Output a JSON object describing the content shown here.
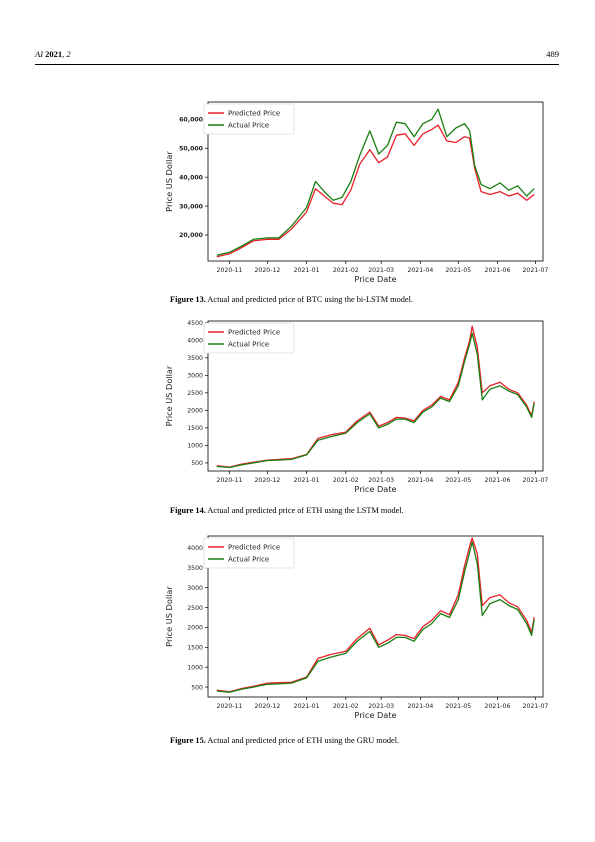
{
  "header": {
    "journal": "AI",
    "year": "2021",
    "volume": "2",
    "page": "489"
  },
  "figures": [
    {
      "caption_label": "Figure 13.",
      "caption_text": "Actual and predicted price of BTC using the bi-LSTM model."
    },
    {
      "caption_label": "Figure 14.",
      "caption_text": "Actual and predicted price of ETH using the LSTM model."
    },
    {
      "caption_label": "Figure 15.",
      "caption_text": "Actual and predicted price of ETH using the GRU model."
    }
  ],
  "chart_data": [
    {
      "type": "line",
      "xlabel": "Price Date",
      "ylabel": "Price US Dollar",
      "x_ticks": [
        "2020-11",
        "2020-12",
        "2021-01",
        "2021-02",
        "2021-03",
        "2021-04",
        "2021-05",
        "2021-06",
        "2021-07"
      ],
      "y_ticks": [
        "20,000",
        "30,000",
        "40,000",
        "50,000",
        "60,000"
      ],
      "ylim": [
        11000,
        66000
      ],
      "legend_position": "top-left",
      "grid": false,
      "series": [
        {
          "name": "Predicted Price",
          "color": "#e8202a",
          "x": [
            "2020-10-22",
            "2020-11-01",
            "2020-11-10",
            "2020-11-20",
            "2020-12-01",
            "2020-12-10",
            "2020-12-20",
            "2021-01-01",
            "2021-01-08",
            "2021-01-15",
            "2021-01-22",
            "2021-01-29",
            "2021-02-05",
            "2021-02-12",
            "2021-02-20",
            "2021-02-27",
            "2021-03-06",
            "2021-03-13",
            "2021-03-20",
            "2021-03-27",
            "2021-04-03",
            "2021-04-10",
            "2021-04-15",
            "2021-04-22",
            "2021-04-29",
            "2021-05-06",
            "2021-05-10",
            "2021-05-14",
            "2021-05-19",
            "2021-05-26",
            "2021-06-03",
            "2021-06-10",
            "2021-06-17",
            "2021-06-24",
            "2021-06-30"
          ],
          "y": [
            12500,
            13500,
            15500,
            18000,
            18500,
            18500,
            22000,
            28000,
            36000,
            33500,
            31000,
            30500,
            35500,
            44500,
            49500,
            45000,
            47000,
            54500,
            55000,
            51000,
            55000,
            56500,
            58000,
            52500,
            52000,
            54000,
            53500,
            43000,
            35000,
            34000,
            35000,
            33500,
            34500,
            32000,
            34000
          ]
        },
        {
          "name": "Actual Price",
          "color": "#1a7f12",
          "x": [
            "2020-10-22",
            "2020-11-01",
            "2020-11-10",
            "2020-11-20",
            "2020-12-01",
            "2020-12-10",
            "2020-12-20",
            "2021-01-01",
            "2021-01-08",
            "2021-01-15",
            "2021-01-22",
            "2021-01-29",
            "2021-02-05",
            "2021-02-12",
            "2021-02-20",
            "2021-02-27",
            "2021-03-06",
            "2021-03-13",
            "2021-03-20",
            "2021-03-27",
            "2021-04-03",
            "2021-04-10",
            "2021-04-15",
            "2021-04-22",
            "2021-04-29",
            "2021-05-06",
            "2021-05-10",
            "2021-05-14",
            "2021-05-19",
            "2021-05-26",
            "2021-06-03",
            "2021-06-10",
            "2021-06-17",
            "2021-06-24",
            "2021-06-30"
          ],
          "y": [
            13000,
            14000,
            16000,
            18500,
            19000,
            19000,
            23000,
            29500,
            38500,
            35000,
            32000,
            33000,
            38500,
            47500,
            56000,
            48000,
            51000,
            59000,
            58500,
            54000,
            58500,
            60000,
            63500,
            54000,
            57000,
            58500,
            56000,
            44000,
            37500,
            36000,
            38000,
            35500,
            37000,
            33500,
            36000
          ]
        }
      ]
    },
    {
      "type": "line",
      "xlabel": "Price Date",
      "ylabel": "Price US Dollar",
      "x_ticks": [
        "2020-11",
        "2020-12",
        "2021-01",
        "2021-02",
        "2021-03",
        "2021-04",
        "2021-05",
        "2021-06",
        "2021-07"
      ],
      "y_ticks": [
        "500",
        "1000",
        "1500",
        "2000",
        "2500",
        "3000",
        "3500",
        "4000",
        "4500"
      ],
      "ylim": [
        270,
        4550
      ],
      "legend_position": "top-left",
      "grid": false,
      "series": [
        {
          "name": "Predicted Price",
          "color": "#e8202a",
          "x": [
            "2020-10-22",
            "2020-11-01",
            "2020-11-10",
            "2020-11-20",
            "2020-12-01",
            "2020-12-10",
            "2020-12-20",
            "2021-01-01",
            "2021-01-10",
            "2021-01-20",
            "2021-02-01",
            "2021-02-10",
            "2021-02-20",
            "2021-02-27",
            "2021-03-06",
            "2021-03-13",
            "2021-03-20",
            "2021-03-27",
            "2021-04-03",
            "2021-04-10",
            "2021-04-17",
            "2021-04-24",
            "2021-05-01",
            "2021-05-06",
            "2021-05-10",
            "2021-05-12",
            "2021-05-16",
            "2021-05-20",
            "2021-05-26",
            "2021-06-03",
            "2021-06-10",
            "2021-06-17",
            "2021-06-24",
            "2021-06-28",
            "2021-06-30"
          ],
          "y": [
            420,
            380,
            460,
            520,
            580,
            600,
            620,
            740,
            1200,
            1300,
            1380,
            1700,
            1950,
            1550,
            1650,
            1800,
            1780,
            1700,
            2000,
            2150,
            2400,
            2300,
            2800,
            3500,
            4000,
            4400,
            3800,
            2500,
            2700,
            2800,
            2600,
            2500,
            2150,
            1850,
            2250
          ]
        },
        {
          "name": "Actual Price",
          "color": "#1a7f12",
          "x": [
            "2020-10-22",
            "2020-11-01",
            "2020-11-10",
            "2020-11-20",
            "2020-12-01",
            "2020-12-10",
            "2020-12-20",
            "2021-01-01",
            "2021-01-10",
            "2021-01-20",
            "2021-02-01",
            "2021-02-10",
            "2021-02-20",
            "2021-02-27",
            "2021-03-06",
            "2021-03-13",
            "2021-03-20",
            "2021-03-27",
            "2021-04-03",
            "2021-04-10",
            "2021-04-17",
            "2021-04-24",
            "2021-05-01",
            "2021-05-06",
            "2021-05-10",
            "2021-05-12",
            "2021-05-16",
            "2021-05-20",
            "2021-05-26",
            "2021-06-03",
            "2021-06-10",
            "2021-06-17",
            "2021-06-24",
            "2021-06-28",
            "2021-06-30"
          ],
          "y": [
            400,
            370,
            440,
            500,
            570,
            580,
            600,
            730,
            1150,
            1250,
            1350,
            1650,
            1900,
            1500,
            1600,
            1750,
            1750,
            1650,
            1950,
            2100,
            2350,
            2250,
            2700,
            3400,
            3900,
            4200,
            3600,
            2300,
            2600,
            2700,
            2550,
            2450,
            2100,
            1800,
            2200
          ]
        }
      ]
    },
    {
      "type": "line",
      "xlabel": "Price Date",
      "ylabel": "Price US Dollar",
      "x_ticks": [
        "2020-11",
        "2020-12",
        "2021-01",
        "2021-02",
        "2021-03",
        "2021-04",
        "2021-05",
        "2021-06",
        "2021-07"
      ],
      "y_ticks": [
        "500",
        "1000",
        "1500",
        "2000",
        "2500",
        "3000",
        "3500",
        "4000"
      ],
      "ylim": [
        250,
        4300
      ],
      "legend_position": "top-left",
      "grid": false,
      "series": [
        {
          "name": "Predicted Price",
          "color": "#e8202a",
          "x": [
            "2020-10-22",
            "2020-11-01",
            "2020-11-10",
            "2020-11-20",
            "2020-12-01",
            "2020-12-10",
            "2020-12-20",
            "2021-01-01",
            "2021-01-10",
            "2021-01-20",
            "2021-02-01",
            "2021-02-10",
            "2021-02-20",
            "2021-02-27",
            "2021-03-06",
            "2021-03-13",
            "2021-03-20",
            "2021-03-27",
            "2021-04-03",
            "2021-04-10",
            "2021-04-17",
            "2021-04-24",
            "2021-05-01",
            "2021-05-06",
            "2021-05-10",
            "2021-05-12",
            "2021-05-16",
            "2021-05-20",
            "2021-05-26",
            "2021-06-03",
            "2021-06-10",
            "2021-06-17",
            "2021-06-24",
            "2021-06-28",
            "2021-06-30"
          ],
          "y": [
            420,
            380,
            460,
            520,
            600,
            610,
            620,
            750,
            1220,
            1320,
            1400,
            1720,
            1980,
            1560,
            1680,
            1820,
            1800,
            1720,
            2020,
            2180,
            2420,
            2320,
            2820,
            3550,
            4050,
            4250,
            3850,
            2550,
            2750,
            2820,
            2620,
            2520,
            2180,
            1880,
            2260
          ]
        },
        {
          "name": "Actual Price",
          "color": "#1a7f12",
          "x": [
            "2020-10-22",
            "2020-11-01",
            "2020-11-10",
            "2020-11-20",
            "2020-12-01",
            "2020-12-10",
            "2020-12-20",
            "2021-01-01",
            "2021-01-10",
            "2021-01-20",
            "2021-02-01",
            "2021-02-10",
            "2021-02-20",
            "2021-02-27",
            "2021-03-06",
            "2021-03-13",
            "2021-03-20",
            "2021-03-27",
            "2021-04-03",
            "2021-04-10",
            "2021-04-17",
            "2021-04-24",
            "2021-05-01",
            "2021-05-06",
            "2021-05-10",
            "2021-05-12",
            "2021-05-16",
            "2021-05-20",
            "2021-05-26",
            "2021-06-03",
            "2021-06-10",
            "2021-06-17",
            "2021-06-24",
            "2021-06-28",
            "2021-06-30"
          ],
          "y": [
            400,
            370,
            440,
            500,
            570,
            580,
            600,
            730,
            1150,
            1250,
            1350,
            1650,
            1900,
            1500,
            1600,
            1750,
            1750,
            1650,
            1950,
            2100,
            2350,
            2250,
            2700,
            3400,
            3900,
            4150,
            3600,
            2300,
            2600,
            2700,
            2550,
            2450,
            2100,
            1800,
            2200
          ]
        }
      ]
    }
  ]
}
